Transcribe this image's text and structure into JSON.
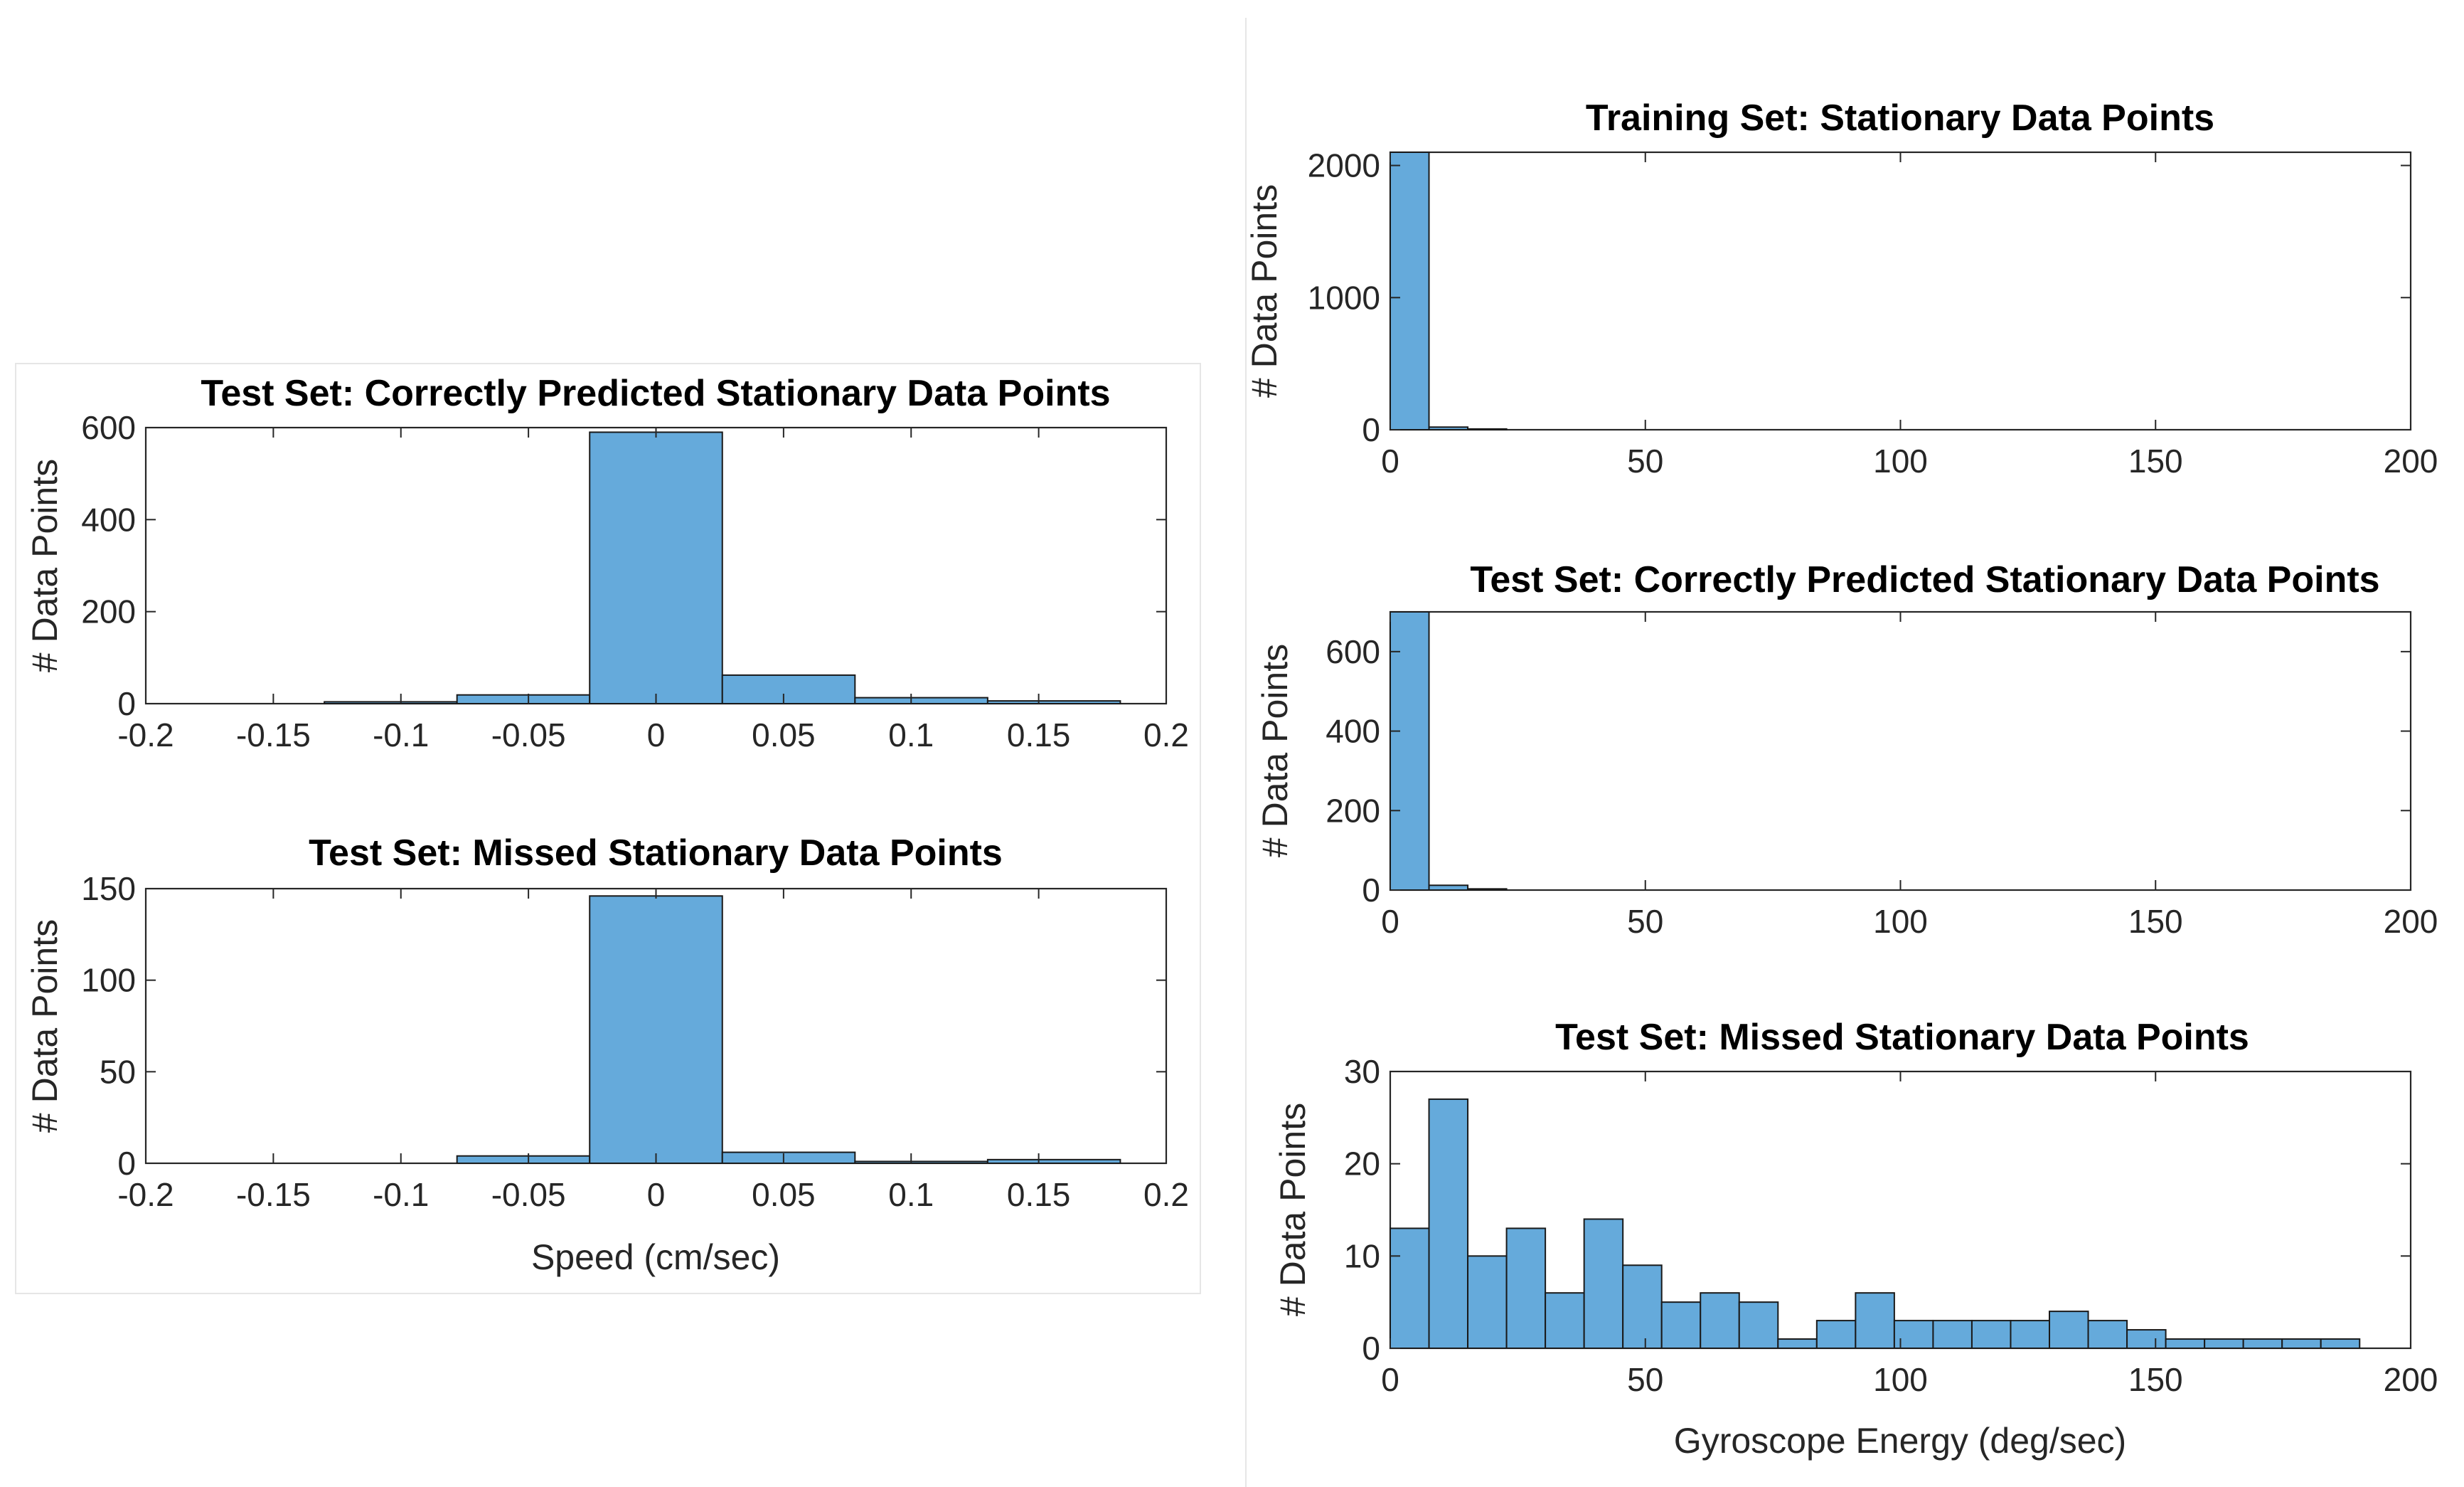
{
  "chart_data": [
    {
      "type": "bar",
      "title": "Test Set: Correctly Predicted Stationary Data Points",
      "xlabel": "",
      "ylabel": "# Data Points",
      "xlim": [
        -0.2,
        0.2
      ],
      "ylim": [
        0,
        600
      ],
      "xticks": [
        -0.2,
        -0.15,
        -0.1,
        -0.05,
        0,
        0.05,
        0.1,
        0.15,
        0.2
      ],
      "yticks": [
        0,
        200,
        400,
        600
      ],
      "bin_edges": [
        -0.13,
        -0.078,
        -0.026,
        0.026,
        0.078,
        0.13,
        0.182
      ],
      "values": [
        4,
        19,
        590,
        62,
        13,
        6
      ]
    },
    {
      "type": "bar",
      "title": "Test Set: Missed Stationary Data Points",
      "xlabel": "Speed (cm/sec)",
      "ylabel": "# Data Points",
      "xlim": [
        -0.2,
        0.2
      ],
      "ylim": [
        0,
        150
      ],
      "xticks": [
        -0.2,
        -0.15,
        -0.1,
        -0.05,
        0,
        0.05,
        0.1,
        0.15,
        0.2
      ],
      "yticks": [
        0,
        50,
        100,
        150
      ],
      "bin_edges": [
        -0.078,
        -0.026,
        0.026,
        0.078,
        0.13,
        0.182
      ],
      "values": [
        4,
        146,
        6,
        1,
        2
      ]
    },
    {
      "type": "bar",
      "title": "Training Set: Stationary Data Points",
      "xlabel": "",
      "ylabel": "# Data Points",
      "xlim": [
        0,
        200
      ],
      "ylim": [
        0,
        2100
      ],
      "xticks": [
        0,
        50,
        100,
        150,
        200
      ],
      "yticks": [
        0,
        1000,
        2000
      ],
      "bin_width": 7.6,
      "values": [
        2100,
        20,
        6
      ]
    },
    {
      "type": "bar",
      "title": "Test Set: Correctly Predicted Stationary Data Points",
      "xlabel": "",
      "ylabel": "# Data Points",
      "xlim": [
        0,
        200
      ],
      "ylim": [
        0,
        700
      ],
      "xticks": [
        0,
        50,
        100,
        150,
        200
      ],
      "yticks": [
        0,
        200,
        400,
        600
      ],
      "bin_width": 7.6,
      "values": [
        700,
        12,
        3
      ]
    },
    {
      "type": "bar",
      "title": "Test Set: Missed Stationary Data Points",
      "xlabel": "Gyroscope Energy (deg/sec)",
      "ylabel": "# Data Points",
      "xlim": [
        0,
        200
      ],
      "ylim": [
        0,
        30
      ],
      "xticks": [
        0,
        50,
        100,
        150,
        200
      ],
      "yticks": [
        0,
        10,
        20,
        30
      ],
      "bin_width": 7.6,
      "values": [
        13,
        27,
        10,
        13,
        6,
        14,
        9,
        5,
        6,
        5,
        1,
        3,
        6,
        3,
        3,
        3,
        3,
        4,
        3,
        2,
        1,
        1,
        1,
        1,
        1
      ]
    }
  ]
}
